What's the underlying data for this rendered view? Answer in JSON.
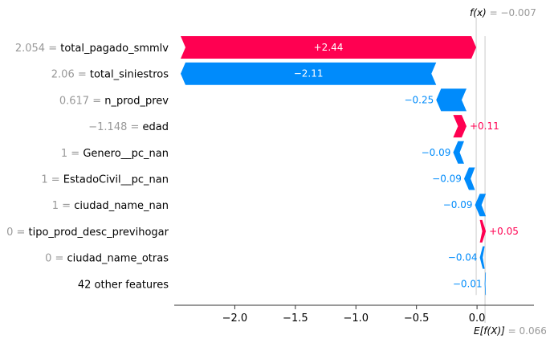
{
  "chart_data": {
    "type": "bar",
    "subtype": "waterfall",
    "fx": {
      "label": "f(x)",
      "value_text": "= −0.007",
      "value": -0.007
    },
    "base": {
      "label": "E[f(X)]",
      "value_text": "= 0.066",
      "value": 0.066
    },
    "xlim": [
      -2.5,
      0.47
    ],
    "xticks": [
      {
        "value": -2.0,
        "label": "−2.0"
      },
      {
        "value": -1.5,
        "label": "−1.5"
      },
      {
        "value": -1.0,
        "label": "−1.0"
      },
      {
        "value": -0.5,
        "label": "−0.5"
      },
      {
        "value": 0.0,
        "label": "0.0"
      }
    ],
    "colors": {
      "positive": "#ff0051",
      "negative": "#008bfb",
      "axis": "#333333",
      "guide": "#cccccc"
    },
    "features": [
      {
        "value_text": "2.054 =",
        "name": "total_pagado_smmlv",
        "contribution": 2.44,
        "label": "+2.44"
      },
      {
        "value_text": "2.06 =",
        "name": "total_siniestros",
        "contribution": -2.11,
        "label": "−2.11"
      },
      {
        "value_text": "0.617 =",
        "name": "n_prod_prev",
        "contribution": -0.25,
        "label": "−0.25"
      },
      {
        "value_text": "−1.148 =",
        "name": "edad",
        "contribution": 0.11,
        "label": "+0.11"
      },
      {
        "value_text": "1 =",
        "name": "Genero__pc_nan",
        "contribution": -0.09,
        "label": "−0.09"
      },
      {
        "value_text": "1 =",
        "name": "EstadoCivil__pc_nan",
        "contribution": -0.09,
        "label": "−0.09"
      },
      {
        "value_text": "1 =",
        "name": "ciudad_name_nan",
        "contribution": -0.09,
        "label": "−0.09"
      },
      {
        "value_text": "0 =",
        "name": "tipo_prod_desc_previhogar",
        "contribution": 0.05,
        "label": "+0.05"
      },
      {
        "value_text": "0 =",
        "name": "ciudad_name_otras",
        "contribution": -0.04,
        "label": "−0.04"
      },
      {
        "value_text": "",
        "name": "42 other features",
        "contribution": -0.01,
        "label": "−0.01"
      }
    ]
  }
}
